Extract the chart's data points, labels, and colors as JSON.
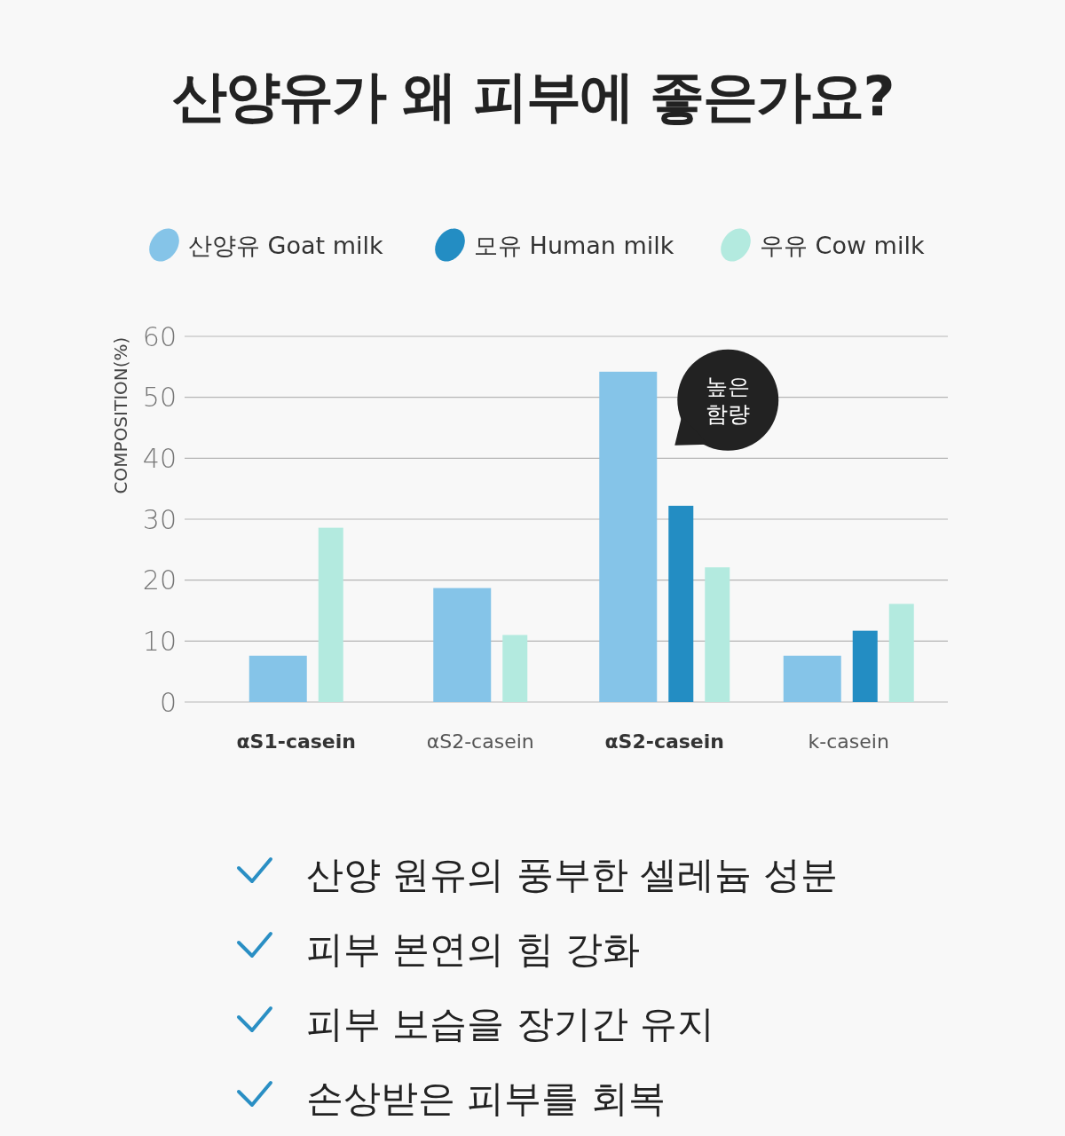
{
  "chart_data": {
    "type": "bar",
    "title": "산양유가 왜 피부에 좋은가요?",
    "ylabel": "COMPOSITION(%)",
    "categories": [
      "αS1-casein",
      "αS2-casein",
      "αS2-casein",
      "k-casein"
    ],
    "series": [
      {
        "name": "산양유 Goat milk",
        "color": "#85c4e8",
        "values": [
          7.6,
          18.7,
          54.2,
          7.6
        ]
      },
      {
        "name": "모유 Human milk",
        "color": "#238dc3",
        "values": [
          null,
          null,
          32.2,
          11.7
        ]
      },
      {
        "name": "우유 Cow milk",
        "color": "#b3eadf",
        "values": [
          28.6,
          11.0,
          22.1,
          16.1
        ]
      }
    ],
    "ylim": [
      0,
      60
    ],
    "yticks": [
      0,
      10,
      20,
      30,
      40,
      50,
      60
    ],
    "grid": "y",
    "legend": "top",
    "annotations": [
      "높은 함량",
      "산양 원유의 풍부한 셀레늄 성분",
      "피부 본연의 힘 강화",
      "피부 보습을 장기간 유지",
      "손상받은 피부를 회복"
    ]
  }
}
